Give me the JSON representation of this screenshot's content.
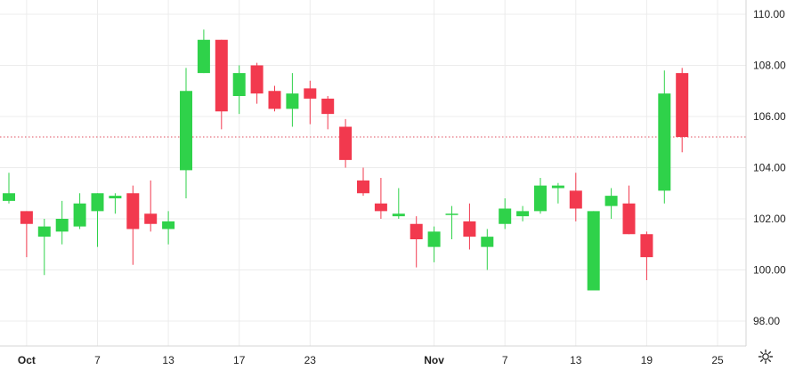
{
  "chart_data": {
    "type": "candlestick",
    "y_axis": {
      "ticks": [
        "110.00",
        "108.00",
        "106.00",
        "104.00",
        "102.00",
        "100.00",
        "98.00"
      ],
      "range": [
        97.3,
        110.5
      ],
      "side": "right"
    },
    "x_axis": {
      "labels": [
        {
          "text": "Oct",
          "index": 1,
          "month": true
        },
        {
          "text": "7",
          "index": 5
        },
        {
          "text": "13",
          "index": 9
        },
        {
          "text": "17",
          "index": 13
        },
        {
          "text": "23",
          "index": 17
        },
        {
          "text": "Nov",
          "index": 24,
          "month": true
        },
        {
          "text": "7",
          "index": 28
        },
        {
          "text": "13",
          "index": 32
        },
        {
          "text": "19",
          "index": 36
        },
        {
          "text": "25",
          "index": 40
        }
      ]
    },
    "reference_line": {
      "value": 105.2,
      "style": "dotted",
      "color": "#e05060"
    },
    "colors": {
      "up": "#2fd24a",
      "down": "#f2394e",
      "grid": "#ececec",
      "wick_up": "#2fd24a",
      "wick_down": "#f2394e"
    },
    "candles": [
      {
        "o": 102.7,
        "h": 103.8,
        "l": 102.6,
        "c": 103.0
      },
      {
        "o": 102.3,
        "h": 102.3,
        "l": 100.5,
        "c": 101.8
      },
      {
        "o": 101.3,
        "h": 102.0,
        "l": 99.8,
        "c": 101.7
      },
      {
        "o": 101.5,
        "h": 102.7,
        "l": 101.0,
        "c": 102.0
      },
      {
        "o": 101.7,
        "h": 103.0,
        "l": 101.6,
        "c": 102.6
      },
      {
        "o": 102.3,
        "h": 103.0,
        "l": 100.9,
        "c": 103.0
      },
      {
        "o": 102.8,
        "h": 103.0,
        "l": 102.2,
        "c": 102.9
      },
      {
        "o": 103.0,
        "h": 103.3,
        "l": 100.2,
        "c": 101.6
      },
      {
        "o": 102.2,
        "h": 103.5,
        "l": 101.5,
        "c": 101.8
      },
      {
        "o": 101.6,
        "h": 102.3,
        "l": 101.0,
        "c": 101.9
      },
      {
        "o": 103.9,
        "h": 107.9,
        "l": 102.8,
        "c": 107.0
      },
      {
        "o": 107.7,
        "h": 109.4,
        "l": 107.7,
        "c": 109.0
      },
      {
        "o": 109.0,
        "h": 109.0,
        "l": 105.5,
        "c": 106.2
      },
      {
        "o": 106.8,
        "h": 108.0,
        "l": 106.1,
        "c": 107.7
      },
      {
        "o": 108.0,
        "h": 108.1,
        "l": 106.5,
        "c": 106.9
      },
      {
        "o": 107.0,
        "h": 107.2,
        "l": 106.2,
        "c": 106.3
      },
      {
        "o": 106.3,
        "h": 107.7,
        "l": 105.6,
        "c": 106.9
      },
      {
        "o": 107.1,
        "h": 107.4,
        "l": 105.7,
        "c": 106.7
      },
      {
        "o": 106.7,
        "h": 106.8,
        "l": 105.5,
        "c": 106.1
      },
      {
        "o": 105.6,
        "h": 105.9,
        "l": 104.0,
        "c": 104.3
      },
      {
        "o": 103.5,
        "h": 104.0,
        "l": 102.9,
        "c": 103.0
      },
      {
        "o": 102.6,
        "h": 103.6,
        "l": 102.0,
        "c": 102.3
      },
      {
        "o": 102.1,
        "h": 103.2,
        "l": 102.0,
        "c": 102.2
      },
      {
        "o": 101.8,
        "h": 102.1,
        "l": 100.1,
        "c": 101.2
      },
      {
        "o": 100.9,
        "h": 101.7,
        "l": 100.3,
        "c": 101.5
      },
      {
        "o": 102.2,
        "h": 102.5,
        "l": 101.2,
        "c": 102.2
      },
      {
        "o": 101.9,
        "h": 102.6,
        "l": 100.8,
        "c": 101.3
      },
      {
        "o": 100.9,
        "h": 101.6,
        "l": 100.0,
        "c": 101.3
      },
      {
        "o": 101.8,
        "h": 102.8,
        "l": 101.6,
        "c": 102.4
      },
      {
        "o": 102.1,
        "h": 102.5,
        "l": 101.9,
        "c": 102.3
      },
      {
        "o": 102.3,
        "h": 103.6,
        "l": 102.2,
        "c": 103.3
      },
      {
        "o": 103.2,
        "h": 103.4,
        "l": 102.6,
        "c": 103.3
      },
      {
        "o": 103.1,
        "h": 103.8,
        "l": 101.9,
        "c": 102.4
      },
      {
        "o": 99.2,
        "h": 102.3,
        "l": 99.2,
        "c": 102.3
      },
      {
        "o": 102.5,
        "h": 103.2,
        "l": 102.0,
        "c": 102.9
      },
      {
        "o": 102.6,
        "h": 103.3,
        "l": 101.4,
        "c": 101.4
      },
      {
        "o": 101.4,
        "h": 101.5,
        "l": 99.6,
        "c": 100.5
      },
      {
        "o": 103.1,
        "h": 107.8,
        "l": 102.6,
        "c": 106.9
      },
      {
        "o": 107.7,
        "h": 107.9,
        "l": 104.6,
        "c": 105.2
      }
    ]
  },
  "ui": {
    "settings_icon": "gear-icon"
  }
}
